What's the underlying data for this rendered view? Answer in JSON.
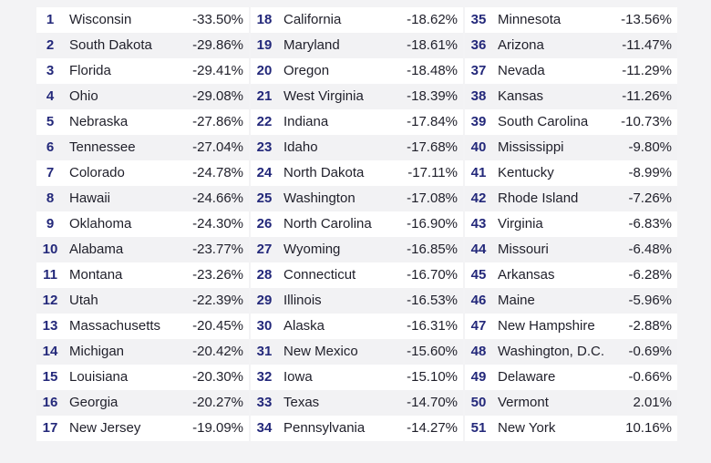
{
  "table": {
    "rows": [
      [
        1,
        "Wisconsin",
        "-33.50%"
      ],
      [
        2,
        "South Dakota",
        "-29.86%"
      ],
      [
        3,
        "Florida",
        "-29.41%"
      ],
      [
        4,
        "Ohio",
        "-29.08%"
      ],
      [
        5,
        "Nebraska",
        "-27.86%"
      ],
      [
        6,
        "Tennessee",
        "-27.04%"
      ],
      [
        7,
        "Colorado",
        "-24.78%"
      ],
      [
        8,
        "Hawaii",
        "-24.66%"
      ],
      [
        9,
        "Oklahoma",
        "-24.30%"
      ],
      [
        10,
        "Alabama",
        "-23.77%"
      ],
      [
        11,
        "Montana",
        "-23.26%"
      ],
      [
        12,
        "Utah",
        "-22.39%"
      ],
      [
        13,
        "Massachusetts",
        "-20.45%"
      ],
      [
        14,
        "Michigan",
        "-20.42%"
      ],
      [
        15,
        "Louisiana",
        "-20.30%"
      ],
      [
        16,
        "Georgia",
        "-20.27%"
      ],
      [
        17,
        "New Jersey",
        "-19.09%"
      ],
      [
        18,
        "California",
        "-18.62%"
      ],
      [
        19,
        "Maryland",
        "-18.61%"
      ],
      [
        20,
        "Oregon",
        "-18.48%"
      ],
      [
        21,
        "West Virginia",
        "-18.39%"
      ],
      [
        22,
        "Indiana",
        "-17.84%"
      ],
      [
        23,
        "Idaho",
        "-17.68%"
      ],
      [
        24,
        "North Dakota",
        "-17.11%"
      ],
      [
        25,
        "Washington",
        "-17.08%"
      ],
      [
        26,
        "North Carolina",
        "-16.90%"
      ],
      [
        27,
        "Wyoming",
        "-16.85%"
      ],
      [
        28,
        "Connecticut",
        "-16.70%"
      ],
      [
        29,
        "Illinois",
        "-16.53%"
      ],
      [
        30,
        "Alaska",
        "-16.31%"
      ],
      [
        31,
        "New Mexico",
        "-15.60%"
      ],
      [
        32,
        "Iowa",
        "-15.10%"
      ],
      [
        33,
        "Texas",
        "-14.70%"
      ],
      [
        34,
        "Pennsylvania",
        "-14.27%"
      ],
      [
        35,
        "Minnesota",
        "-13.56%"
      ],
      [
        36,
        "Arizona",
        "-11.47%"
      ],
      [
        37,
        "Nevada",
        "-11.29%"
      ],
      [
        38,
        "Kansas",
        "-11.26%"
      ],
      [
        39,
        "South Carolina",
        "-10.73%"
      ],
      [
        40,
        "Mississippi",
        "-9.80%"
      ],
      [
        41,
        "Kentucky",
        "-8.99%"
      ],
      [
        42,
        "Rhode Island",
        "-7.26%"
      ],
      [
        43,
        "Virginia",
        "-6.83%"
      ],
      [
        44,
        "Missouri",
        "-6.48%"
      ],
      [
        45,
        "Arkansas",
        "-6.28%"
      ],
      [
        46,
        "Maine",
        "-5.96%"
      ],
      [
        47,
        "New Hampshire",
        "-2.88%"
      ],
      [
        48,
        "Washington, D.C.",
        "-0.69%"
      ],
      [
        49,
        "Delaware",
        "-0.66%"
      ],
      [
        50,
        "Vermont",
        "2.01%"
      ],
      [
        51,
        "New York",
        "10.16%"
      ]
    ]
  }
}
